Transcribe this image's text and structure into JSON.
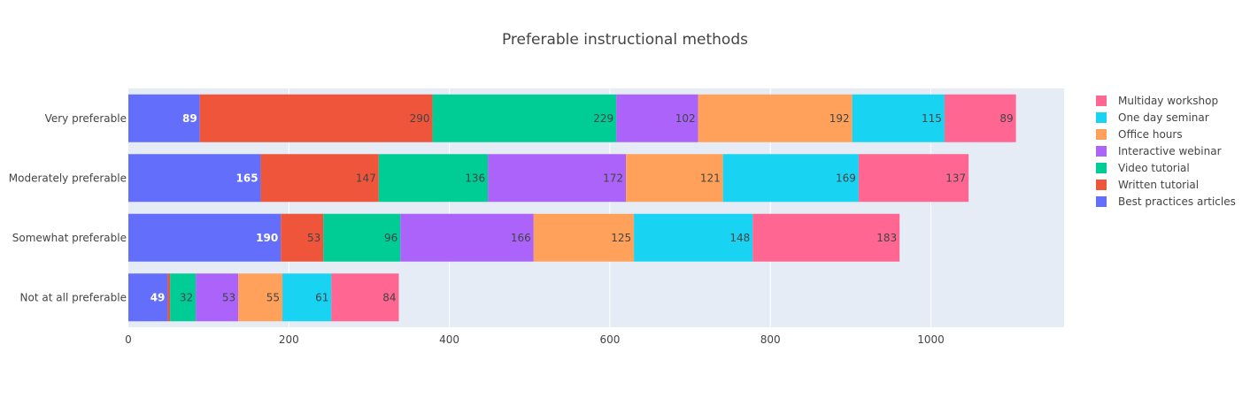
{
  "chart_data": {
    "type": "bar",
    "orientation": "horizontal",
    "barmode": "stack",
    "title": "Preferable instructional methods",
    "xlabel": "",
    "ylabel": "",
    "xlim": [
      0,
      1166
    ],
    "x_ticks": [
      0,
      200,
      400,
      600,
      800,
      1000
    ],
    "grid": true,
    "legend_position": "right",
    "categories": [
      "Very preferable",
      "Moderately preferable",
      "Somewhat preferable",
      "Not at all preferable"
    ],
    "series": [
      {
        "name": "Best practices articles",
        "color": "#636efa",
        "label_color": "#ffffff",
        "values": [
          89,
          165,
          190,
          49
        ]
      },
      {
        "name": "Written tutorial",
        "color": "#ef553b",
        "label_color": "#444444",
        "values": [
          290,
          147,
          53,
          3
        ]
      },
      {
        "name": "Video tutorial",
        "color": "#00cc96",
        "label_color": "#444444",
        "values": [
          229,
          136,
          96,
          32
        ]
      },
      {
        "name": "Interactive webinar",
        "color": "#ab63fa",
        "label_color": "#444444",
        "values": [
          102,
          172,
          166,
          53
        ]
      },
      {
        "name": "Office hours",
        "color": "#ffa15a",
        "label_color": "#444444",
        "values": [
          192,
          121,
          125,
          55
        ]
      },
      {
        "name": "One day seminar",
        "color": "#19d3f3",
        "label_color": "#444444",
        "values": [
          115,
          169,
          148,
          61
        ]
      },
      {
        "name": "Multiday workshop",
        "color": "#ff6692",
        "label_color": "#444444",
        "values": [
          89,
          137,
          183,
          84
        ]
      }
    ]
  }
}
